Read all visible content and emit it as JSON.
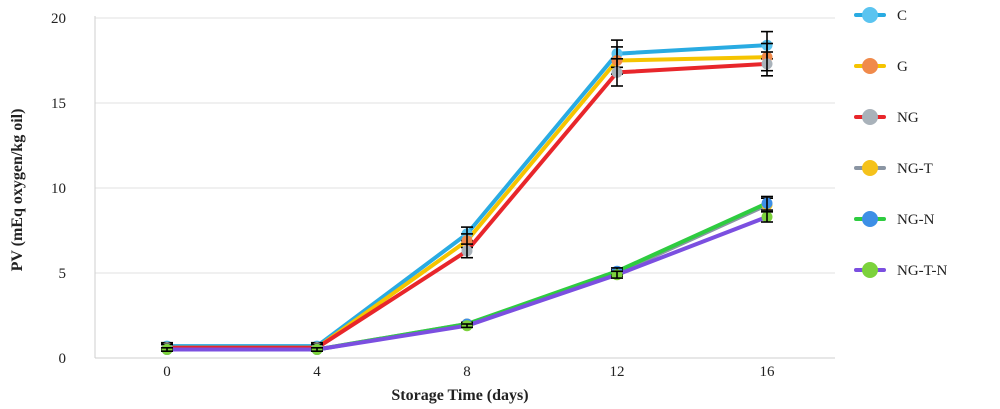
{
  "chart_data": {
    "type": "line",
    "title": "",
    "xlabel": "Storage Time (days)",
    "ylabel": "PV (mEq oxygen/kg oil)",
    "x": [
      0,
      4,
      8,
      12,
      16
    ],
    "x_ticks": [
      "0",
      "4",
      "8",
      "12",
      "16"
    ],
    "y_ticks": [
      "0",
      "5",
      "10",
      "15",
      "20"
    ],
    "ylim": [
      0,
      20
    ],
    "grid": "horizontal",
    "legend_position": "right",
    "series": [
      {
        "name": "C",
        "values": [
          0.7,
          0.7,
          7.3,
          17.9,
          18.4
        ],
        "errors": [
          0.2,
          0.2,
          0.4,
          0.8,
          0.8
        ],
        "line_color": "#29abe2",
        "marker_color": "#5bc4f0"
      },
      {
        "name": "G",
        "values": [
          0.6,
          0.6,
          6.9,
          17.5,
          17.7
        ],
        "errors": [
          0.2,
          0.2,
          0.4,
          0.8,
          0.8
        ],
        "line_color": "#f5c400",
        "marker_color": "#f08a4b"
      },
      {
        "name": "NG",
        "values": [
          0.6,
          0.6,
          6.3,
          16.8,
          17.3
        ],
        "errors": [
          0.2,
          0.2,
          0.4,
          0.8,
          0.7
        ],
        "line_color": "#e8262b",
        "marker_color": "#a9b2ba"
      },
      {
        "name": "NG-T",
        "values": [
          0.5,
          0.5,
          2.0,
          5.0,
          9.0
        ],
        "errors": [
          0.1,
          0.1,
          0.1,
          0.2,
          0.4
        ],
        "line_color": "#8a95a3",
        "marker_color": "#f5c21b"
      },
      {
        "name": "NG-N",
        "values": [
          0.5,
          0.5,
          2.0,
          5.1,
          9.1
        ],
        "errors": [
          0.1,
          0.1,
          0.1,
          0.2,
          0.4
        ],
        "line_color": "#2ecc40",
        "marker_color": "#3d8fe6"
      },
      {
        "name": "NG-T-N",
        "values": [
          0.5,
          0.5,
          1.9,
          4.9,
          8.3
        ],
        "errors": [
          0.1,
          0.1,
          0.1,
          0.2,
          0.3
        ],
        "line_color": "#7b4fe0",
        "marker_color": "#7cd23c"
      }
    ]
  }
}
